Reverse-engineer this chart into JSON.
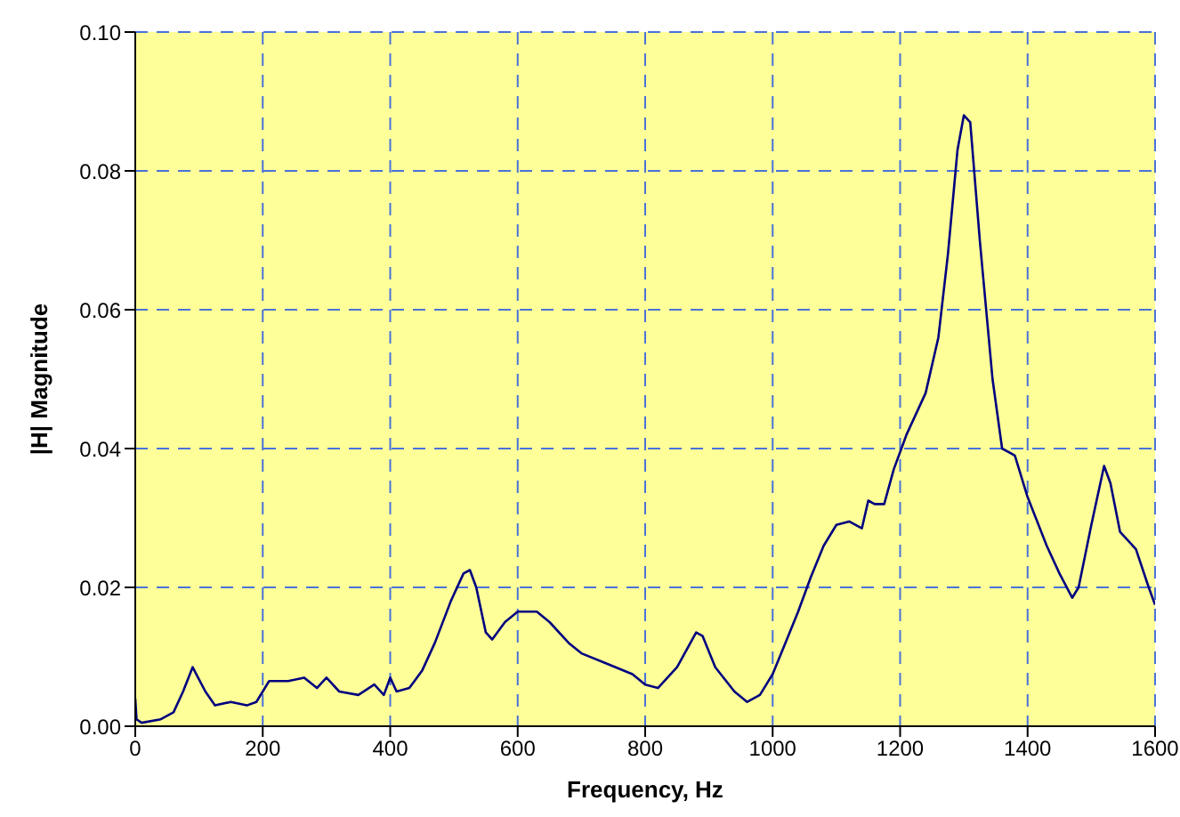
{
  "chart_data": {
    "type": "line",
    "xlabel": "Frequency, Hz",
    "ylabel": "|H| Magnitude",
    "xlim": [
      0,
      1600
    ],
    "xticks": [
      0,
      200,
      400,
      600,
      800,
      1000,
      1200,
      1400,
      1600
    ],
    "ylim": [
      0,
      0.1
    ],
    "yticks": [
      {
        "value": 0,
        "label": "0.00"
      },
      {
        "value": 0.02,
        "label": "0.02"
      },
      {
        "value": 0.04,
        "label": "0.04"
      },
      {
        "value": 0.06,
        "label": "0.06"
      },
      {
        "value": 0.08,
        "label": "0.08"
      },
      {
        "value": 0.1,
        "label": "0.10"
      }
    ],
    "grid": true,
    "marker": "none",
    "line_style": "solid",
    "series": [
      {
        "color": "#000080",
        "x": [
          0,
          2,
          10,
          40,
          60,
          75,
          90,
          110,
          125,
          150,
          175,
          190,
          210,
          240,
          265,
          285,
          300,
          320,
          350,
          375,
          390,
          400,
          410,
          430,
          450,
          470,
          495,
          515,
          525,
          535,
          550,
          560,
          580,
          600,
          630,
          650,
          680,
          700,
          740,
          780,
          800,
          820,
          850,
          880,
          890,
          910,
          940,
          960,
          980,
          1000,
          1020,
          1040,
          1060,
          1080,
          1100,
          1120,
          1140,
          1150,
          1160,
          1175,
          1190,
          1210,
          1240,
          1260,
          1275,
          1290,
          1300,
          1310,
          1325,
          1345,
          1360,
          1380,
          1400,
          1430,
          1450,
          1470,
          1480,
          1500,
          1520,
          1530,
          1545,
          1570,
          1590,
          1600
        ],
        "values": [
          0.004,
          0.001,
          0.0005,
          0.001,
          0.002,
          0.005,
          0.0085,
          0.005,
          0.003,
          0.0035,
          0.003,
          0.0035,
          0.0065,
          0.0065,
          0.007,
          0.0055,
          0.007,
          0.005,
          0.0045,
          0.006,
          0.0045,
          0.007,
          0.005,
          0.0055,
          0.008,
          0.012,
          0.018,
          0.022,
          0.0225,
          0.02,
          0.0135,
          0.0125,
          0.015,
          0.0165,
          0.0165,
          0.015,
          0.012,
          0.0105,
          0.009,
          0.0075,
          0.006,
          0.0055,
          0.0085,
          0.0135,
          0.013,
          0.0085,
          0.005,
          0.0035,
          0.0045,
          0.0075,
          0.012,
          0.0165,
          0.0215,
          0.026,
          0.029,
          0.0295,
          0.0285,
          0.0325,
          0.032,
          0.032,
          0.037,
          0.042,
          0.048,
          0.056,
          0.068,
          0.083,
          0.088,
          0.087,
          0.07,
          0.05,
          0.04,
          0.039,
          0.033,
          0.026,
          0.022,
          0.0185,
          0.02,
          0.029,
          0.0375,
          0.035,
          0.028,
          0.0255,
          0.02,
          0.0175
        ]
      }
    ]
  }
}
